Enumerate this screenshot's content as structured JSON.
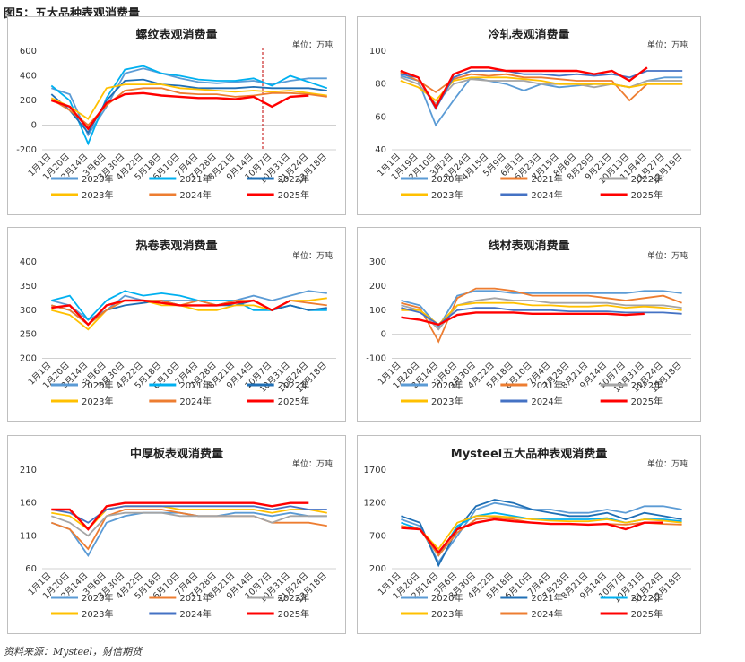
{
  "figure_title": "图5：五大品种表观消费量",
  "footer": "资料来源：Mysteel，财信期货",
  "unit": "单位：万吨",
  "legend_series": [
    "2020年",
    "2021年",
    "2022年",
    "2023年",
    "2024年",
    "2025年"
  ],
  "colors": {
    "2020年": "#5b9bd5",
    "2021年": "#ed7d31",
    "2022年": "#a5a5a5",
    "2023年": "#ffc000",
    "2024年": "#4472c4",
    "2025年": "#ff0000",
    "2021年_rebar": "#00b0f0",
    "2022年_rebar": "#1f6fb5"
  },
  "chart_data": [
    {
      "id": "rebar",
      "type": "line",
      "title": "螺纹表观消费量",
      "ylim": [
        -200,
        600
      ],
      "yticks": [
        -200,
        0,
        200,
        400,
        600
      ],
      "x": [
        "1月1日",
        "1月20日",
        "2月14日",
        "3月6日",
        "3月30日",
        "4月22日",
        "5月18日",
        "6月10日",
        "7月4日",
        "7月28日",
        "8月21日",
        "9月14日",
        "10月7日",
        "10月31日",
        "11月24日",
        "12月18日"
      ],
      "legend_colors": [
        "#5b9bd5",
        "#00b0f0",
        "#1f6fb5",
        "#ffc000",
        "#ed7d31",
        "#ff0000"
      ],
      "marker_line_x": 11.5,
      "series": [
        {
          "name": "2020年",
          "values": [
            300,
            250,
            -80,
            150,
            420,
            460,
            420,
            380,
            350,
            340,
            350,
            360,
            330,
            360,
            380,
            380
          ]
        },
        {
          "name": "2021年",
          "values": [
            320,
            200,
            -150,
            220,
            450,
            480,
            420,
            400,
            370,
            360,
            360,
            380,
            320,
            400,
            350,
            300
          ]
        },
        {
          "name": "2022年",
          "values": [
            250,
            120,
            -60,
            200,
            360,
            370,
            330,
            320,
            300,
            300,
            300,
            310,
            300,
            300,
            300,
            280
          ]
        },
        {
          "name": "2023年",
          "values": [
            220,
            150,
            50,
            300,
            330,
            330,
            330,
            300,
            290,
            280,
            270,
            280,
            270,
            280,
            260,
            240
          ]
        },
        {
          "name": "2024年",
          "values": [
            210,
            120,
            0,
            160,
            280,
            300,
            300,
            260,
            250,
            250,
            230,
            240,
            260,
            260,
            250,
            230
          ]
        },
        {
          "name": "2025年",
          "values": [
            200,
            150,
            -30,
            180,
            250,
            260,
            240,
            230,
            220,
            220,
            210,
            230,
            150,
            230,
            240,
            null
          ]
        }
      ]
    },
    {
      "id": "cold",
      "type": "line",
      "title": "冷轧表观消费量",
      "ylim": [
        40,
        100
      ],
      "yticks": [
        40,
        60,
        80,
        100
      ],
      "x": [
        "1月1日",
        "1月19日",
        "2月10日",
        "3月2日",
        "3月24日",
        "4月15日",
        "5月9日",
        "6月1日",
        "6月23日",
        "7月15日",
        "8月6日",
        "8月29日",
        "9月21日",
        "10月13日",
        "11月4日",
        "11月27日",
        "12月19日"
      ],
      "legend_colors": [
        "#5b9bd5",
        "#ed7d31",
        "#a5a5a5",
        "#ffc000",
        "#4472c4",
        "#ff0000"
      ],
      "series": [
        {
          "name": "2020年",
          "values": [
            85,
            82,
            55,
            70,
            84,
            82,
            80,
            76,
            80,
            78,
            79,
            80,
            80,
            78,
            82,
            84,
            84
          ]
        },
        {
          "name": "2021年",
          "values": [
            87,
            82,
            75,
            83,
            86,
            85,
            86,
            84,
            84,
            83,
            82,
            82,
            82,
            70,
            80,
            80,
            80
          ]
        },
        {
          "name": "2022年",
          "values": [
            84,
            80,
            68,
            80,
            83,
            82,
            82,
            82,
            80,
            80,
            80,
            78,
            80,
            78,
            82,
            82,
            82
          ]
        },
        {
          "name": "2023年",
          "values": [
            82,
            78,
            70,
            82,
            84,
            84,
            84,
            83,
            82,
            80,
            80,
            80,
            80,
            78,
            80,
            80,
            80
          ]
        },
        {
          "name": "2024年",
          "values": [
            86,
            84,
            65,
            84,
            88,
            88,
            88,
            86,
            86,
            85,
            86,
            85,
            86,
            84,
            88,
            88,
            88
          ]
        },
        {
          "name": "2025年",
          "values": [
            88,
            84,
            66,
            86,
            90,
            90,
            88,
            88,
            88,
            88,
            88,
            86,
            88,
            82,
            90,
            null,
            null
          ]
        }
      ]
    },
    {
      "id": "hot",
      "type": "line",
      "title": "热卷表观消费量",
      "ylim": [
        200,
        400
      ],
      "yticks": [
        200,
        250,
        300,
        350,
        400
      ],
      "x": [
        "1月1日",
        "1月20日",
        "2月14日",
        "3月6日",
        "3月30日",
        "4月22日",
        "5月18日",
        "6月10日",
        "7月4日",
        "7月28日",
        "8月21日",
        "9月14日",
        "10月7日",
        "10月31日",
        "11月24日",
        "12月18日"
      ],
      "legend_colors": [
        "#5b9bd5",
        "#00b0f0",
        "#1f6fb5",
        "#ffc000",
        "#ed7d31",
        "#ff0000"
      ],
      "series": [
        {
          "name": "2020年",
          "values": [
            320,
            310,
            280,
            300,
            330,
            320,
            320,
            320,
            320,
            310,
            320,
            330,
            320,
            330,
            340,
            335
          ]
        },
        {
          "name": "2021年",
          "values": [
            320,
            330,
            280,
            320,
            340,
            330,
            335,
            330,
            320,
            320,
            320,
            300,
            300,
            310,
            300,
            300
          ]
        },
        {
          "name": "2022年",
          "values": [
            310,
            300,
            270,
            300,
            310,
            315,
            320,
            310,
            310,
            310,
            310,
            320,
            300,
            310,
            300,
            305
          ]
        },
        {
          "name": "2023年",
          "values": [
            300,
            290,
            260,
            300,
            320,
            320,
            310,
            310,
            300,
            300,
            310,
            310,
            300,
            320,
            320,
            325
          ]
        },
        {
          "name": "2024年",
          "values": [
            310,
            300,
            270,
            300,
            320,
            320,
            320,
            310,
            320,
            310,
            320,
            320,
            300,
            320,
            315,
            310
          ]
        },
        {
          "name": "2025年",
          "values": [
            305,
            310,
            270,
            310,
            320,
            320,
            315,
            310,
            310,
            310,
            315,
            320,
            300,
            320,
            null,
            null
          ]
        }
      ]
    },
    {
      "id": "wire",
      "type": "line",
      "title": "线材表观消费量",
      "ylim": [
        -100,
        300
      ],
      "yticks": [
        -100,
        0,
        100,
        200,
        300
      ],
      "x": [
        "1月1日",
        "1月20日",
        "2月14日",
        "3月6日",
        "3月30日",
        "4月22日",
        "5月18日",
        "6月10日",
        "7月4日",
        "7月28日",
        "8月21日",
        "9月14日",
        "10月7日",
        "10月31日",
        "11月24日",
        "12月18日"
      ],
      "legend_colors": [
        "#5b9bd5",
        "#ed7d31",
        "#a5a5a5",
        "#ffc000",
        "#4472c4",
        "#ff0000"
      ],
      "series": [
        {
          "name": "2020年",
          "values": [
            140,
            120,
            30,
            160,
            180,
            180,
            170,
            170,
            170,
            170,
            170,
            170,
            170,
            180,
            180,
            170
          ]
        },
        {
          "name": "2021年",
          "values": [
            130,
            110,
            -30,
            150,
            190,
            190,
            180,
            160,
            160,
            160,
            160,
            150,
            140,
            150,
            160,
            130
          ]
        },
        {
          "name": "2022年",
          "values": [
            120,
            100,
            20,
            120,
            140,
            150,
            140,
            140,
            130,
            130,
            130,
            130,
            120,
            120,
            120,
            110
          ]
        },
        {
          "name": "2023年",
          "values": [
            100,
            100,
            40,
            120,
            130,
            130,
            130,
            120,
            120,
            115,
            115,
            120,
            110,
            115,
            110,
            100
          ]
        },
        {
          "name": "2024年",
          "values": [
            110,
            90,
            40,
            100,
            110,
            110,
            100,
            100,
            100,
            95,
            95,
            95,
            90,
            90,
            90,
            85
          ]
        },
        {
          "name": "2025年",
          "values": [
            70,
            60,
            40,
            80,
            90,
            90,
            90,
            85,
            85,
            85,
            85,
            85,
            80,
            85,
            null,
            null
          ]
        }
      ]
    },
    {
      "id": "plate",
      "type": "line",
      "title": "中厚板表观消费量",
      "ylim": [
        60,
        210
      ],
      "yticks": [
        60,
        110,
        160,
        210
      ],
      "x": [
        "1月1日",
        "1月20日",
        "2月14日",
        "3月6日",
        "3月30日",
        "4月22日",
        "5月18日",
        "6月10日",
        "7月4日",
        "7月28日",
        "8月21日",
        "9月14日",
        "10月7日",
        "10月31日",
        "11月24日",
        "12月18日"
      ],
      "legend_colors": [
        "#5b9bd5",
        "#ed7d31",
        "#a5a5a5",
        "#ffc000",
        "#4472c4",
        "#ff0000"
      ],
      "series": [
        {
          "name": "2020年",
          "values": [
            130,
            120,
            80,
            130,
            140,
            145,
            145,
            145,
            140,
            140,
            145,
            145,
            140,
            145,
            140,
            140
          ]
        },
        {
          "name": "2021年",
          "values": [
            130,
            120,
            90,
            140,
            150,
            150,
            150,
            145,
            140,
            140,
            140,
            140,
            130,
            130,
            130,
            125
          ]
        },
        {
          "name": "2022年",
          "values": [
            140,
            130,
            110,
            140,
            145,
            145,
            145,
            140,
            140,
            140,
            140,
            140,
            130,
            140,
            140,
            140
          ]
        },
        {
          "name": "2023年",
          "values": [
            145,
            140,
            120,
            150,
            155,
            155,
            155,
            150,
            150,
            150,
            150,
            150,
            145,
            150,
            150,
            145
          ]
        },
        {
          "name": "2024年",
          "values": [
            150,
            145,
            130,
            150,
            155,
            155,
            155,
            155,
            155,
            155,
            155,
            155,
            150,
            155,
            150,
            150
          ]
        },
        {
          "name": "2025年",
          "values": [
            150,
            150,
            120,
            155,
            160,
            160,
            160,
            160,
            160,
            160,
            160,
            160,
            155,
            160,
            160,
            null
          ]
        }
      ]
    },
    {
      "id": "total",
      "type": "line",
      "title": "Mysteel五大品种表观消费量",
      "ylim": [
        200,
        1700
      ],
      "yticks": [
        200,
        700,
        1200,
        1700
      ],
      "x": [
        "1月1日",
        "1月20日",
        "2月14日",
        "3月6日",
        "3月30日",
        "4月22日",
        "5月18日",
        "6月10日",
        "7月4日",
        "7月28日",
        "8月21日",
        "9月14日",
        "10月7日",
        "10月31日",
        "11月24日",
        "12月18日"
      ],
      "legend_colors": [
        "#5b9bd5",
        "#1f6fb5",
        "#00b0f0",
        "#ffc000",
        "#ed7d31",
        "#ff0000"
      ],
      "series": [
        {
          "name": "2020年",
          "values": [
            950,
            850,
            300,
            700,
            1100,
            1200,
            1150,
            1100,
            1100,
            1050,
            1050,
            1100,
            1050,
            1150,
            1150,
            1100
          ]
        },
        {
          "name": "2021年",
          "values": [
            1000,
            900,
            250,
            800,
            1150,
            1250,
            1200,
            1100,
            1050,
            1000,
            1000,
            1050,
            950,
            1050,
            1000,
            950
          ]
        },
        {
          "name": "2022年",
          "values": [
            900,
            800,
            400,
            850,
            1000,
            1050,
            1000,
            950,
            950,
            950,
            950,
            970,
            900,
            950,
            950,
            920
          ]
        },
        {
          "name": "2023年",
          "values": [
            850,
            800,
            500,
            900,
            1000,
            1000,
            980,
            950,
            930,
            920,
            920,
            950,
            900,
            950,
            930,
            900
          ]
        },
        {
          "name": "2024年",
          "values": [
            850,
            800,
            400,
            750,
            950,
            980,
            950,
            900,
            880,
            880,
            870,
            880,
            870,
            900,
            880,
            870
          ]
        },
        {
          "name": "2025年",
          "values": [
            820,
            800,
            450,
            800,
            900,
            950,
            920,
            900,
            880,
            880,
            870,
            880,
            800,
            900,
            900,
            null
          ]
        }
      ]
    }
  ]
}
